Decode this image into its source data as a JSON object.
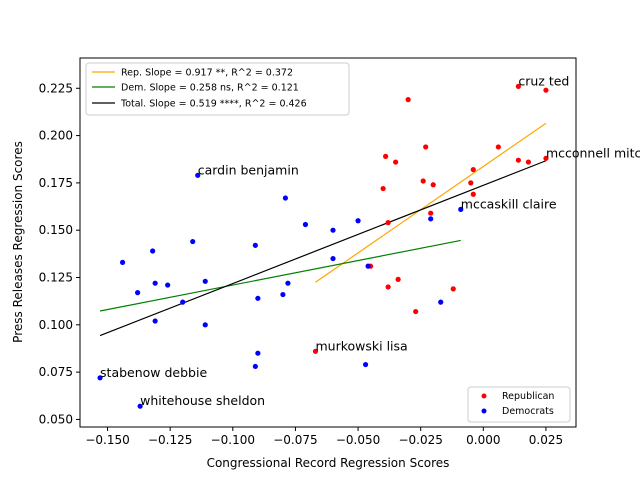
{
  "chart_data": {
    "type": "scatter",
    "xlabel": "Congressional Record Regression Scores",
    "ylabel": "Press Releases Regression Scores",
    "xlim": [
      -0.161,
      0.037
    ],
    "ylim": [
      0.046,
      0.241
    ],
    "xticks": [
      -0.15,
      -0.125,
      -0.1,
      -0.075,
      -0.05,
      -0.025,
      0.0,
      0.025
    ],
    "xtick_labels": [
      "−0.150",
      "−0.125",
      "−0.100",
      "−0.075",
      "−0.050",
      "−0.025",
      "0.000",
      "0.025"
    ],
    "yticks": [
      0.05,
      0.075,
      0.1,
      0.125,
      0.15,
      0.175,
      0.2,
      0.225
    ],
    "ytick_labels": [
      "0.050",
      "0.075",
      "0.100",
      "0.125",
      "0.150",
      "0.175",
      "0.200",
      "0.225"
    ],
    "grid": false,
    "series": [
      {
        "name": "Republican",
        "color": "#ff0000",
        "points": [
          [
            0.014,
            0.226
          ],
          [
            0.025,
            0.224
          ],
          [
            -0.03,
            0.219
          ],
          [
            0.006,
            0.194
          ],
          [
            -0.023,
            0.194
          ],
          [
            -0.039,
            0.189
          ],
          [
            -0.035,
            0.186
          ],
          [
            0.014,
            0.187
          ],
          [
            0.018,
            0.186
          ],
          [
            0.025,
            0.188
          ],
          [
            -0.004,
            0.182
          ],
          [
            -0.024,
            0.176
          ],
          [
            -0.02,
            0.174
          ],
          [
            -0.04,
            0.172
          ],
          [
            -0.005,
            0.175
          ],
          [
            -0.004,
            0.169
          ],
          [
            -0.021,
            0.159
          ],
          [
            -0.038,
            0.154
          ],
          [
            -0.045,
            0.131
          ],
          [
            -0.034,
            0.124
          ],
          [
            -0.038,
            0.12
          ],
          [
            -0.012,
            0.119
          ],
          [
            -0.027,
            0.107
          ],
          [
            -0.067,
            0.086
          ]
        ]
      },
      {
        "name": "Democrats",
        "color": "#0000ff",
        "points": [
          [
            -0.114,
            0.179
          ],
          [
            -0.079,
            0.167
          ],
          [
            -0.009,
            0.161
          ],
          [
            -0.021,
            0.156
          ],
          [
            -0.05,
            0.155
          ],
          [
            -0.071,
            0.153
          ],
          [
            -0.06,
            0.15
          ],
          [
            -0.116,
            0.144
          ],
          [
            -0.091,
            0.142
          ],
          [
            -0.132,
            0.139
          ],
          [
            -0.06,
            0.135
          ],
          [
            -0.144,
            0.133
          ],
          [
            -0.046,
            0.131
          ],
          [
            -0.111,
            0.123
          ],
          [
            -0.078,
            0.122
          ],
          [
            -0.131,
            0.122
          ],
          [
            -0.126,
            0.121
          ],
          [
            -0.138,
            0.117
          ],
          [
            -0.08,
            0.116
          ],
          [
            -0.09,
            0.114
          ],
          [
            -0.12,
            0.112
          ],
          [
            -0.017,
            0.112
          ],
          [
            -0.131,
            0.102
          ],
          [
            -0.111,
            0.1
          ],
          [
            -0.09,
            0.085
          ],
          [
            -0.091,
            0.078
          ],
          [
            -0.047,
            0.079
          ],
          [
            -0.153,
            0.072
          ],
          [
            -0.137,
            0.057
          ]
        ]
      }
    ],
    "fits": [
      {
        "name": "Rep. Slope = 0.917 **, R^2 = 0.372",
        "color": "#ffa500",
        "x": [
          -0.067,
          0.025
        ],
        "y": [
          0.1225,
          0.2065
        ]
      },
      {
        "name": "Dem. Slope = 0.258 ns, R^2 = 0.121",
        "color": "#008000",
        "x": [
          -0.153,
          -0.009
        ],
        "y": [
          0.1073,
          0.1446
        ]
      },
      {
        "name": "Total. Slope = 0.519 ****, R^2 = 0.426",
        "color": "#000000",
        "x": [
          -0.153,
          0.025
        ],
        "y": [
          0.0943,
          0.1867
        ]
      }
    ],
    "annotations": [
      {
        "text": "cruz ted",
        "x": 0.014,
        "y": 0.226
      },
      {
        "text": "mcconnell mitch",
        "x": 0.025,
        "y": 0.188
      },
      {
        "text": "cardin benjamin",
        "x": -0.114,
        "y": 0.179
      },
      {
        "text": "mccaskill claire",
        "x": -0.009,
        "y": 0.161
      },
      {
        "text": "murkowski lisa",
        "x": -0.067,
        "y": 0.086
      },
      {
        "text": "stabenow debbie",
        "x": -0.153,
        "y": 0.072
      },
      {
        "text": "whitehouse sheldon",
        "x": -0.137,
        "y": 0.057
      }
    ],
    "legend_fits_placement": "upper-left",
    "legend_points_placement": "lower-right"
  }
}
